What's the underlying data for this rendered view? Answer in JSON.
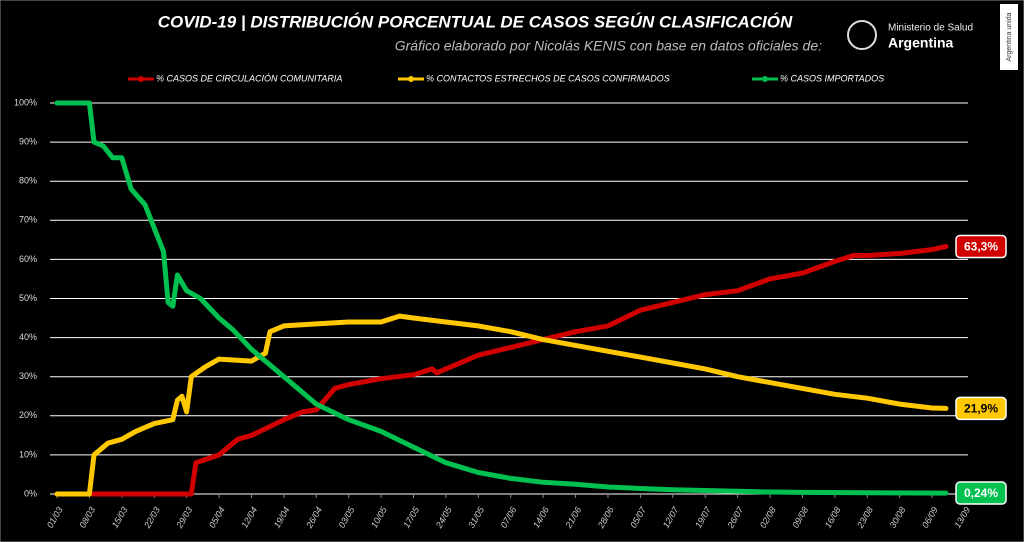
{
  "chart_data": {
    "type": "line",
    "title": "COVID-19  |  DISTRIBUCIÓN PORCENTUAL DE CASOS SEGÚN CLASIFICACIÓN",
    "subtitle": "Gráfico elaborado por Nicolás KENIS con base en datos oficiales de:",
    "annotations": [
      "Ministerio de Salud",
      "Argentina",
      "Argentina unida"
    ],
    "ylim": [
      0,
      100
    ],
    "yticks": [
      {
        "value": 0,
        "label": "0%"
      },
      {
        "value": 10,
        "label": "10%"
      },
      {
        "value": 20,
        "label": "20%"
      },
      {
        "value": 30,
        "label": "30%"
      },
      {
        "value": 40,
        "label": "40%"
      },
      {
        "value": 50,
        "label": "50%"
      },
      {
        "value": 60,
        "label": "60%"
      },
      {
        "value": 70,
        "label": "70%"
      },
      {
        "value": 80,
        "label": "80%"
      },
      {
        "value": 90,
        "label": "90%"
      },
      {
        "value": 100,
        "label": "100%"
      }
    ],
    "xticks": [
      "01/03",
      "08/03",
      "15/03",
      "22/03",
      "29/03",
      "05/04",
      "12/04",
      "19/04",
      "26/04",
      "03/05",
      "10/05",
      "17/05",
      "24/05",
      "31/05",
      "07/06",
      "14/06",
      "21/06",
      "28/06",
      "05/07",
      "12/07",
      "19/07",
      "26/07",
      "02/08",
      "09/08",
      "16/08",
      "23/08",
      "30/08",
      "06/09",
      "13/09"
    ],
    "grid": true,
    "series": [
      {
        "name": "% CASOS DE CIRCULACIÓN COMUNITARIA",
        "color": "#d10000",
        "x": [
          "01/03",
          "30/03",
          "31/03",
          "05/04",
          "09/04",
          "12/04",
          "19/04",
          "23/04",
          "26/04",
          "30/04",
          "03/05",
          "10/05",
          "17/05",
          "21/05",
          "22/05",
          "24/05",
          "31/05",
          "07/06",
          "14/06",
          "21/06",
          "28/06",
          "05/07",
          "12/07",
          "19/07",
          "26/07",
          "02/08",
          "09/08",
          "16/08",
          "20/08",
          "23/08",
          "30/08",
          "06/09",
          "09/09"
        ],
        "values": [
          0,
          0,
          8,
          10,
          14,
          15,
          19,
          21,
          21.5,
          27,
          28,
          29.5,
          30.5,
          32,
          31,
          32,
          35.5,
          37.5,
          39.5,
          41.5,
          43,
          47,
          49,
          51,
          52,
          55,
          56.5,
          59.5,
          61,
          61,
          61.5,
          62.5,
          63.3
        ],
        "value_labels": [
          null,
          null,
          null,
          null,
          null,
          null,
          null,
          null,
          null,
          null,
          null,
          null,
          null,
          null,
          null,
          null,
          null,
          null,
          null,
          null,
          null,
          null,
          null,
          null,
          null,
          null,
          null,
          null,
          null,
          null,
          null,
          null,
          "63,3%"
        ]
      },
      {
        "name": "% CONTACTOS ESTRECHOS DE CASOS CONFIRMADOS",
        "color": "#ffc800",
        "x": [
          "01/03",
          "08/03",
          "09/03",
          "12/03",
          "15/03",
          "18/03",
          "22/03",
          "26/03",
          "27/03",
          "28/03",
          "29/03",
          "30/03",
          "02/04",
          "05/04",
          "12/04",
          "15/04",
          "16/04",
          "19/04",
          "26/04",
          "03/05",
          "10/05",
          "14/05",
          "17/05",
          "24/05",
          "31/05",
          "07/06",
          "14/06",
          "21/06",
          "28/06",
          "05/07",
          "12/07",
          "19/07",
          "26/07",
          "02/08",
          "09/08",
          "16/08",
          "23/08",
          "30/08",
          "06/09",
          "09/09"
        ],
        "values": [
          0,
          0,
          10,
          13,
          14,
          16,
          18,
          19,
          24,
          25,
          21,
          30,
          32.5,
          34.5,
          34,
          36,
          41.5,
          43,
          43.5,
          44,
          44,
          45.5,
          45,
          44,
          43,
          41.5,
          39.5,
          38,
          36.5,
          35,
          33.5,
          32,
          30,
          28.5,
          27,
          25.5,
          24.5,
          23,
          22,
          21.9
        ],
        "value_labels": [
          null,
          null,
          null,
          null,
          null,
          null,
          null,
          null,
          null,
          null,
          null,
          null,
          null,
          null,
          null,
          null,
          null,
          null,
          null,
          null,
          null,
          null,
          null,
          null,
          null,
          null,
          null,
          null,
          null,
          null,
          null,
          null,
          null,
          null,
          null,
          null,
          null,
          null,
          null,
          "21,9%"
        ]
      },
      {
        "name": "% CASOS IMPORTADOS",
        "color": "#00c050",
        "x": [
          "01/03",
          "08/03",
          "09/03",
          "11/03",
          "13/03",
          "15/03",
          "17/03",
          "20/03",
          "22/03",
          "24/03",
          "25/03",
          "26/03",
          "27/03",
          "29/03",
          "01/04",
          "05/04",
          "08/04",
          "12/04",
          "19/04",
          "26/04",
          "03/05",
          "10/05",
          "17/05",
          "24/05",
          "31/05",
          "07/06",
          "14/06",
          "21/06",
          "28/06",
          "05/07",
          "12/07",
          "19/07",
          "26/07",
          "02/08",
          "09/08",
          "23/08",
          "09/09"
        ],
        "values": [
          100,
          100,
          90,
          89,
          86,
          86,
          78,
          74,
          68,
          62,
          49,
          48,
          56,
          52,
          50,
          45,
          42,
          37,
          30,
          23,
          19,
          16,
          12,
          8,
          5.5,
          4,
          3,
          2.5,
          1.8,
          1.4,
          1.1,
          0.9,
          0.7,
          0.5,
          0.4,
          0.3,
          0.24
        ],
        "value_labels": [
          null,
          null,
          null,
          null,
          null,
          null,
          null,
          null,
          null,
          null,
          null,
          null,
          null,
          null,
          null,
          null,
          null,
          null,
          null,
          null,
          null,
          null,
          null,
          null,
          null,
          null,
          null,
          null,
          null,
          null,
          null,
          null,
          null,
          null,
          null,
          null,
          "0,24%"
        ]
      }
    ]
  }
}
